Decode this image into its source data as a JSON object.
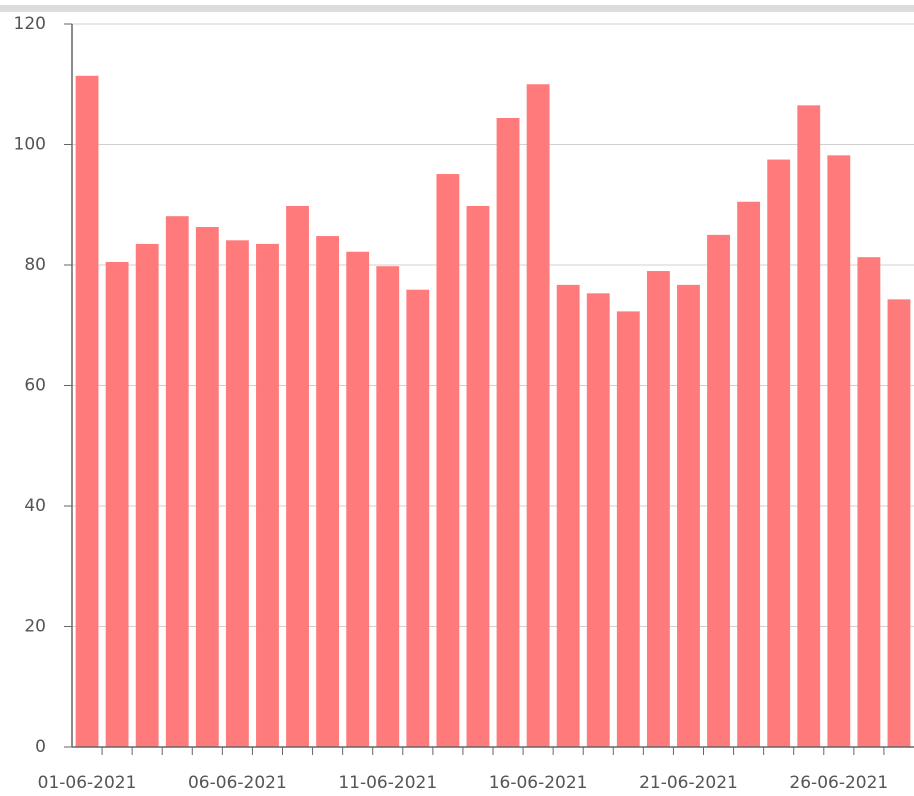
{
  "chart_data": {
    "type": "bar",
    "categories": [
      "01-06-2021",
      null,
      null,
      null,
      null,
      "06-06-2021",
      null,
      null,
      null,
      null,
      "11-06-2021",
      null,
      null,
      null,
      null,
      "16-06-2021",
      null,
      null,
      null,
      null,
      "21-06-2021",
      null,
      null,
      null,
      null,
      "26-06-2021",
      null,
      null
    ],
    "values": [
      111.4,
      80.5,
      83.5,
      88.1,
      86.3,
      84.1,
      83.5,
      89.8,
      84.8,
      82.2,
      79.8,
      75.9,
      95.1,
      89.8,
      104.4,
      110.0,
      76.7,
      75.3,
      72.3,
      79.0,
      76.7,
      85.0,
      90.5,
      97.5,
      106.5,
      98.2,
      81.3,
      74.3
    ],
    "color": "#ff7b7b",
    "ylim": [
      0,
      120
    ],
    "yticks": [
      0,
      20,
      40,
      60,
      80,
      100,
      120
    ],
    "grid": true
  }
}
